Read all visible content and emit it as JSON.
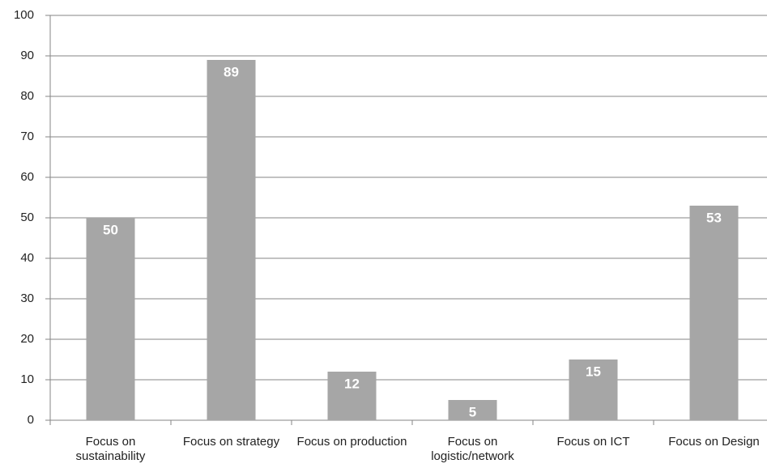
{
  "chart_data": {
    "type": "bar",
    "categories": [
      "Focus on sustainability",
      "Focus on strategy",
      "Focus on production",
      "Focus on logistic/network",
      "Focus on ICT",
      "Focus on Design"
    ],
    "values": [
      50,
      89,
      12,
      5,
      15,
      53
    ],
    "color": "#a6a6a6",
    "ylim": [
      0,
      100
    ],
    "yticks": [
      0,
      10,
      20,
      30,
      40,
      50,
      60,
      70,
      80,
      90,
      100
    ],
    "grid": true
  }
}
